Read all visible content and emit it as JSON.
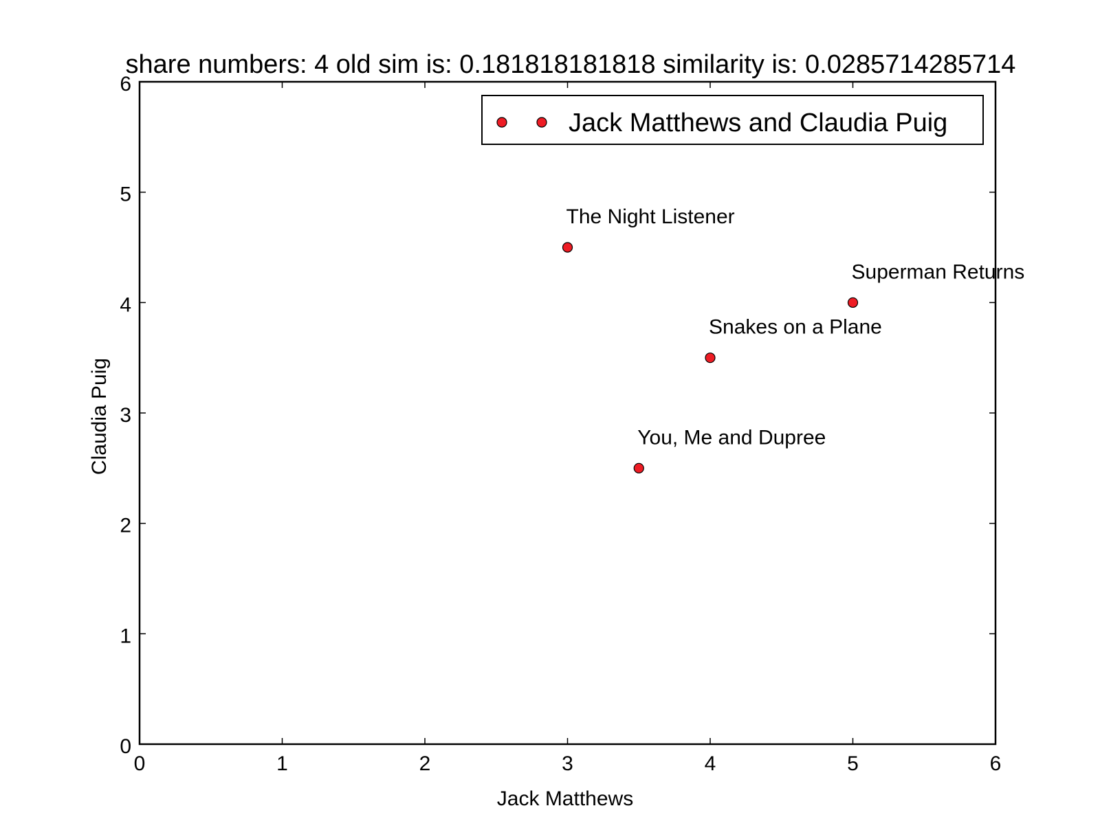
{
  "chart_data": {
    "type": "scatter",
    "title": "share numbers: 4 old sim is: 0.181818181818 similarity is: 0.0285714285714",
    "xlabel": "Jack Matthews",
    "ylabel": "Claudia Puig",
    "xlim": [
      0,
      6
    ],
    "ylim": [
      0,
      6
    ],
    "xticks": [
      0,
      1,
      2,
      3,
      4,
      5,
      6
    ],
    "yticks": [
      0,
      1,
      2,
      3,
      4,
      5,
      6
    ],
    "grid": false,
    "legend": {
      "position": "top-right",
      "entries": [
        "Jack Matthews and Claudia Puig"
      ]
    },
    "series": [
      {
        "name": "Jack Matthews and Claudia Puig",
        "color": "#ee1c24",
        "points": [
          {
            "x": 3.0,
            "y": 4.5,
            "label": "The Night Listener"
          },
          {
            "x": 5.0,
            "y": 4.0,
            "label": "Superman Returns"
          },
          {
            "x": 4.0,
            "y": 3.5,
            "label": "Snakes on a Plane"
          },
          {
            "x": 3.5,
            "y": 2.5,
            "label": "You, Me and Dupree"
          }
        ]
      }
    ]
  }
}
